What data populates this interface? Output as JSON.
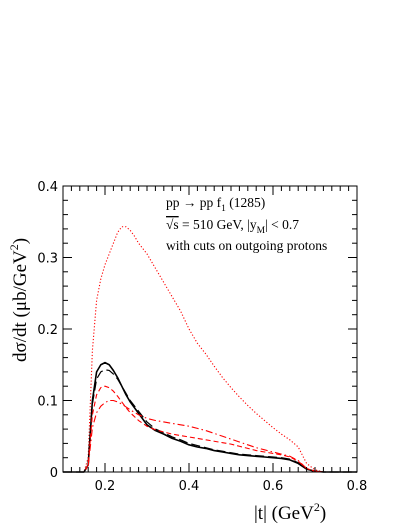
{
  "chart_data": {
    "type": "line",
    "xlabel": "|t| (GeV²)",
    "ylabel": "dσ/dt (μb/GeV²)",
    "xlim": [
      0.1,
      0.8
    ],
    "ylim": [
      0,
      0.4
    ],
    "x_ticks": [
      "0.2",
      "0.4",
      "0.6",
      "0.8"
    ],
    "y_ticks": [
      "0",
      "0.1",
      "0.2",
      "0.3",
      "0.4"
    ],
    "annotation": {
      "line1": "pp → pp f₁(1285)",
      "line2": "√s = 510 GeV,  |y_M| < 0.7",
      "line3": "with cuts on outgoing protons"
    },
    "series": [
      {
        "style": "dotted",
        "color": "#ff0000",
        "x": [
          0.1,
          0.15,
          0.16,
          0.17,
          0.18,
          0.19,
          0.2,
          0.21,
          0.22,
          0.23,
          0.24,
          0.25,
          0.26,
          0.27,
          0.28,
          0.3,
          0.32,
          0.34,
          0.36,
          0.38,
          0.4,
          0.42,
          0.44,
          0.46,
          0.48,
          0.5,
          0.52,
          0.54,
          0.56,
          0.58,
          0.6,
          0.62,
          0.64,
          0.66,
          0.68,
          0.7,
          0.72,
          0.8
        ],
        "y": [
          0,
          0,
          0.02,
          0.17,
          0.24,
          0.27,
          0.29,
          0.305,
          0.32,
          0.335,
          0.343,
          0.343,
          0.338,
          0.33,
          0.32,
          0.305,
          0.285,
          0.265,
          0.245,
          0.225,
          0.2,
          0.18,
          0.165,
          0.148,
          0.132,
          0.118,
          0.105,
          0.093,
          0.082,
          0.072,
          0.062,
          0.053,
          0.045,
          0.035,
          0.012,
          0.003,
          0,
          0
        ]
      },
      {
        "style": "solid",
        "color": "#000000",
        "x": [
          0.1,
          0.15,
          0.16,
          0.17,
          0.18,
          0.19,
          0.2,
          0.21,
          0.22,
          0.23,
          0.24,
          0.25,
          0.26,
          0.28,
          0.3,
          0.32,
          0.34,
          0.36,
          0.38,
          0.4,
          0.42,
          0.44,
          0.46,
          0.48,
          0.5,
          0.52,
          0.54,
          0.56,
          0.58,
          0.6,
          0.62,
          0.64,
          0.66,
          0.68,
          0.7,
          0.72,
          0.8
        ],
        "y": [
          0,
          0,
          0.01,
          0.1,
          0.14,
          0.15,
          0.153,
          0.15,
          0.142,
          0.132,
          0.12,
          0.108,
          0.098,
          0.082,
          0.066,
          0.058,
          0.053,
          0.047,
          0.043,
          0.038,
          0.035,
          0.033,
          0.03,
          0.028,
          0.026,
          0.024,
          0.023,
          0.022,
          0.021,
          0.02,
          0.019,
          0.017,
          0.012,
          0.004,
          0.001,
          0,
          0
        ]
      },
      {
        "style": "longdash",
        "color": "#000000",
        "x": [
          0.1,
          0.15,
          0.16,
          0.17,
          0.18,
          0.19,
          0.2,
          0.21,
          0.22,
          0.23,
          0.24,
          0.25,
          0.26,
          0.28,
          0.3,
          0.32,
          0.34,
          0.36,
          0.38,
          0.4,
          0.42,
          0.44,
          0.46,
          0.48,
          0.5,
          0.52,
          0.54,
          0.56,
          0.58,
          0.6,
          0.62,
          0.64,
          0.66,
          0.68,
          0.7,
          0.72,
          0.8
        ],
        "y": [
          0,
          0,
          0.01,
          0.095,
          0.13,
          0.14,
          0.143,
          0.142,
          0.137,
          0.13,
          0.12,
          0.11,
          0.1,
          0.085,
          0.07,
          0.06,
          0.055,
          0.049,
          0.045,
          0.04,
          0.037,
          0.034,
          0.031,
          0.029,
          0.027,
          0.025,
          0.024,
          0.023,
          0.022,
          0.021,
          0.02,
          0.018,
          0.013,
          0.004,
          0.001,
          0,
          0
        ]
      },
      {
        "style": "dashed",
        "color": "#ff0000",
        "x": [
          0.1,
          0.15,
          0.16,
          0.17,
          0.18,
          0.19,
          0.2,
          0.21,
          0.22,
          0.23,
          0.24,
          0.25,
          0.26,
          0.28,
          0.3,
          0.32,
          0.34,
          0.36,
          0.38,
          0.4,
          0.42,
          0.44,
          0.46,
          0.48,
          0.5,
          0.52,
          0.54,
          0.56,
          0.58,
          0.6,
          0.62,
          0.64,
          0.66,
          0.68,
          0.7,
          0.72,
          0.8
        ],
        "y": [
          0,
          0,
          0.01,
          0.08,
          0.108,
          0.118,
          0.12,
          0.118,
          0.113,
          0.106,
          0.098,
          0.09,
          0.083,
          0.072,
          0.064,
          0.059,
          0.056,
          0.053,
          0.051,
          0.049,
          0.047,
          0.045,
          0.043,
          0.041,
          0.039,
          0.036,
          0.033,
          0.03,
          0.028,
          0.026,
          0.024,
          0.021,
          0.015,
          0.005,
          0.001,
          0,
          0
        ]
      },
      {
        "style": "dashdot",
        "color": "#ff0000",
        "x": [
          0.1,
          0.15,
          0.16,
          0.17,
          0.18,
          0.19,
          0.2,
          0.21,
          0.22,
          0.23,
          0.24,
          0.25,
          0.26,
          0.28,
          0.3,
          0.32,
          0.34,
          0.36,
          0.38,
          0.4,
          0.42,
          0.44,
          0.46,
          0.48,
          0.5,
          0.52,
          0.54,
          0.56,
          0.58,
          0.6,
          0.62,
          0.64,
          0.66,
          0.68,
          0.7,
          0.72,
          0.8
        ],
        "y": [
          0,
          0,
          0.008,
          0.062,
          0.083,
          0.092,
          0.097,
          0.1,
          0.1,
          0.098,
          0.095,
          0.091,
          0.087,
          0.08,
          0.075,
          0.072,
          0.07,
          0.068,
          0.066,
          0.064,
          0.061,
          0.058,
          0.054,
          0.05,
          0.046,
          0.042,
          0.038,
          0.034,
          0.031,
          0.028,
          0.025,
          0.022,
          0.016,
          0.005,
          0.001,
          0,
          0
        ]
      }
    ]
  }
}
